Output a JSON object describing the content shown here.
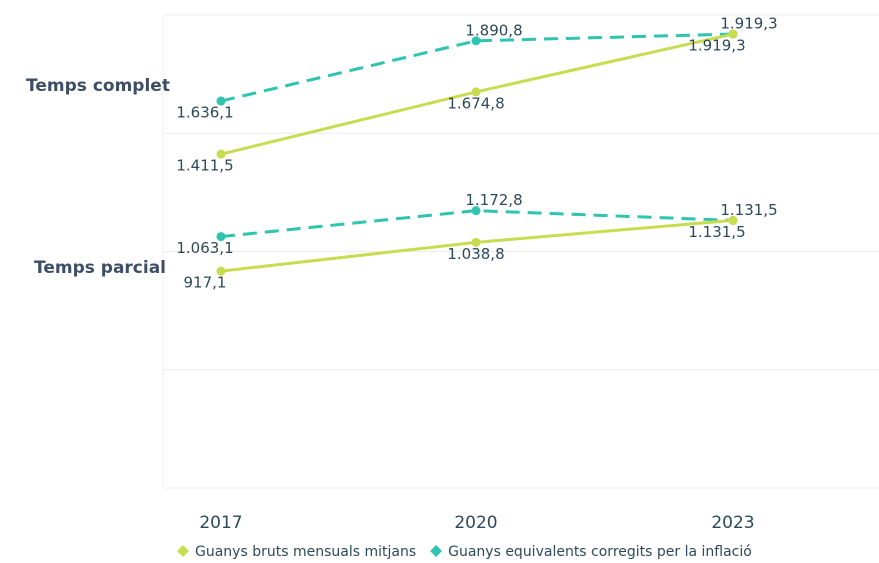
{
  "chart_data": {
    "type": "line",
    "categories": [
      "2017",
      "2020",
      "2023"
    ],
    "ylim": [
      0,
      2000
    ],
    "yticks": [
      0,
      500,
      1000,
      1500,
      2000
    ],
    "grid": true,
    "legend_position": "bottom",
    "legend": [
      {
        "name": "Guanys bruts mensuals mitjans",
        "color": "#c8dc50",
        "dashed": false
      },
      {
        "name": "Guanys equivalents corregits per la inflació",
        "color": "#2ec4b0",
        "dashed": true
      }
    ],
    "groups": [
      {
        "label": "Temps complet",
        "series": [
          {
            "values": [
              1411.5,
              1674.8,
              1919.3
            ],
            "value_labels": [
              "1.411,5",
              "1.674,8",
              "1.919,3"
            ]
          },
          {
            "values": [
              1636.1,
              1890.8,
              1919.3
            ],
            "value_labels": [
              "1.636,1",
              "1.890,8",
              "1.919,3"
            ]
          }
        ]
      },
      {
        "label": "Temps parcial",
        "series": [
          {
            "values": [
              917.1,
              1038.8,
              1131.5
            ],
            "value_labels": [
              "917,1",
              "1.038,8",
              "1.131,5"
            ]
          },
          {
            "values": [
              1063.1,
              1172.8,
              1131.5
            ],
            "value_labels": [
              "1.063,1",
              "1.172,8",
              "1.131,5"
            ]
          }
        ]
      }
    ]
  }
}
